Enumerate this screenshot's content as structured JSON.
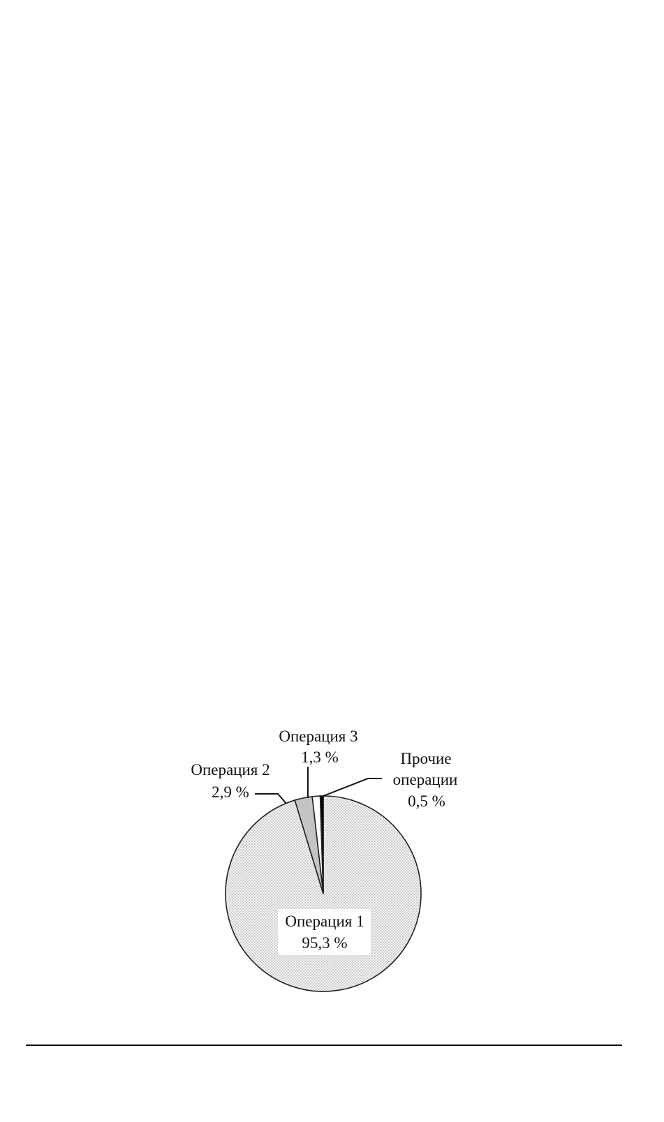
{
  "chart_data": {
    "type": "pie",
    "title": "",
    "start": "top",
    "direction": "clockwise",
    "slices": [
      {
        "label": "Операция 1",
        "value_text": "95,3 %",
        "value": 95.3,
        "fill": "dotted-light-gray"
      },
      {
        "label": "Операция 2",
        "value_text": "2,9 %",
        "value": 2.9,
        "fill": "#c4c4c4"
      },
      {
        "label": "Операция 3",
        "value_text": "1,3 %",
        "value": 1.3,
        "fill": "#ffffff"
      },
      {
        "label": "Прочие операции",
        "label_lines": [
          "Прочие",
          "операции"
        ],
        "value_text": "0,5 %",
        "value": 0.5,
        "fill": "#000000"
      }
    ],
    "legend": "none",
    "outline_color": "#222222"
  }
}
